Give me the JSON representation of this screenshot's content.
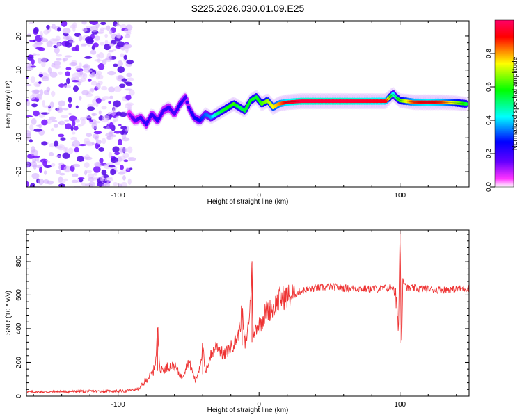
{
  "figure_title": "S225.2026.030.01.09.E25",
  "chart_data": [
    {
      "type": "heatmap",
      "title": "S225.2026.030.01.09.E25",
      "xlabel": "Height of straight line (km)",
      "ylabel": "Frequency (Hz)",
      "xlim": [
        -165,
        149
      ],
      "ylim": [
        -24.5,
        24.5
      ],
      "xticks": [
        -100,
        0,
        100
      ],
      "yticks": [
        -20,
        -10,
        0,
        10,
        20
      ],
      "grid": false,
      "colorbar": {
        "label": "Normalized spectral amplitude",
        "range": [
          0,
          1
        ],
        "ticks": [
          0.0,
          0.2,
          0.4,
          0.6,
          0.8
        ],
        "colormap": [
          "#ffffff",
          "#ff33ff",
          "#6600ff",
          "#0000ff",
          "#00ffff",
          "#00ff00",
          "#ffff00",
          "#ff0000",
          "#ff0066"
        ]
      },
      "noise_region": {
        "x_range": [
          -165,
          -90
        ],
        "y_range": [
          -24.5,
          24.5
        ],
        "amplitude": 0.1
      },
      "ridge": {
        "x": [
          -92,
          -88,
          -84,
          -80,
          -76,
          -72,
          -68,
          -64,
          -60,
          -56,
          -52,
          -50,
          -46,
          -42,
          -38,
          -34,
          -30,
          -26,
          -22,
          -18,
          -14,
          -10,
          -6,
          -2,
          2,
          6,
          10,
          14,
          20,
          30,
          40,
          60,
          80,
          90,
          95,
          97,
          100,
          110,
          120,
          130,
          140,
          147
        ],
        "y": [
          -3,
          -5,
          -4,
          -6,
          -3,
          -5,
          -2,
          -1,
          -3,
          0,
          2,
          -1,
          -4,
          -5,
          -3,
          -4,
          -3,
          -2,
          -1,
          0,
          -1,
          -2,
          1,
          2,
          0,
          1,
          -1,
          0,
          0.5,
          0.8,
          0.8,
          0.8,
          0.8,
          0.8,
          3,
          2,
          1,
          0.5,
          0.5,
          0.5,
          0.3,
          0
        ],
        "amplitude": [
          0.22,
          0.28,
          0.3,
          0.32,
          0.3,
          0.33,
          0.3,
          0.32,
          0.28,
          0.35,
          0.3,
          0.32,
          0.35,
          0.38,
          0.42,
          0.45,
          0.55,
          0.6,
          0.62,
          0.65,
          0.58,
          0.6,
          0.62,
          0.6,
          0.65,
          0.7,
          0.75,
          0.8,
          0.9,
          0.95,
          0.95,
          0.95,
          0.92,
          0.9,
          0.5,
          0.55,
          0.65,
          0.85,
          0.9,
          0.85,
          0.7,
          0.6
        ]
      }
    },
    {
      "type": "line",
      "title": "",
      "xlabel": "Height of straight line (km)",
      "ylabel": "SNR (10 * v/v)",
      "xlim": [
        -165,
        149
      ],
      "ylim": [
        0,
        985
      ],
      "xticks": [
        -100,
        0,
        100
      ],
      "yticks": [
        0,
        200,
        400,
        600,
        800
      ],
      "grid": false,
      "series": [
        {
          "name": "SNR",
          "color": "#ee3333",
          "x": [
            -165,
            -150,
            -130,
            -110,
            -95,
            -85,
            -80,
            -75,
            -73,
            -72,
            -70,
            -65,
            -60,
            -55,
            -50,
            -45,
            -42,
            -40,
            -38,
            -35,
            -30,
            -25,
            -20,
            -15,
            -12,
            -10,
            -8,
            -6,
            -5,
            -4,
            -2,
            0,
            5,
            10,
            15,
            20,
            25,
            30,
            40,
            50,
            60,
            70,
            80,
            90,
            95,
            98,
            99,
            100,
            101,
            102,
            105,
            110,
            120,
            130,
            140,
            149
          ],
          "y": [
            25,
            25,
            28,
            30,
            30,
            45,
            95,
            145,
            230,
            405,
            150,
            175,
            180,
            110,
            210,
            90,
            180,
            290,
            130,
            230,
            305,
            240,
            290,
            350,
            500,
            300,
            395,
            560,
            798,
            320,
            420,
            420,
            500,
            520,
            580,
            590,
            600,
            625,
            640,
            650,
            640,
            638,
            635,
            640,
            650,
            520,
            415,
            980,
            315,
            700,
            640,
            640,
            635,
            630,
            635,
            640
          ]
        }
      ]
    }
  ]
}
